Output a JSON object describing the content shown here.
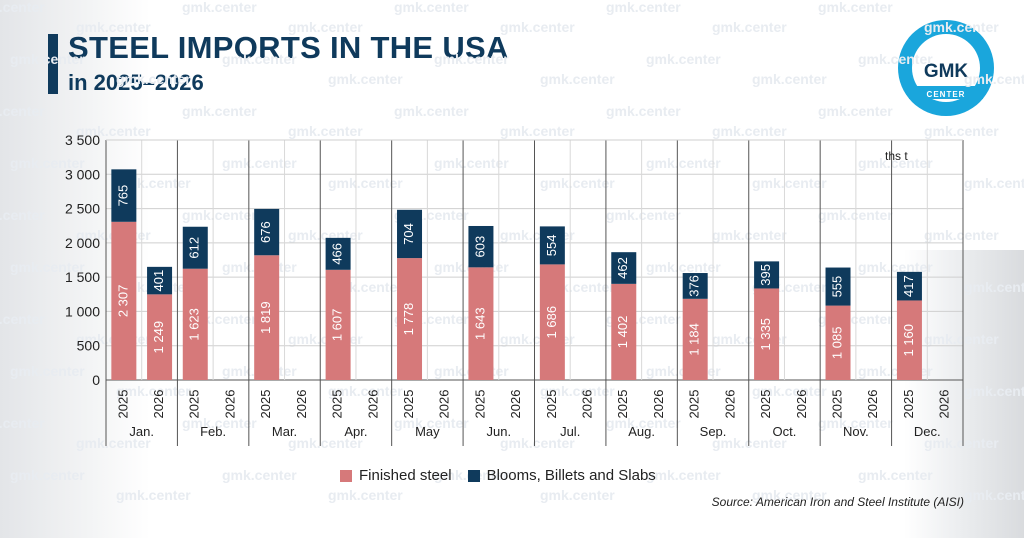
{
  "header": {
    "title": "STEEL IMPORTS IN THE USA",
    "subtitle": "in 2025–2026"
  },
  "logo": {
    "line1": "GMK",
    "line2": "CENTER"
  },
  "watermark": "gmk.center",
  "colors": {
    "finished": "#d6797a",
    "blooms": "#0f3a5c",
    "title": "#0f3a5c",
    "logo_ring": "#1aa6dc"
  },
  "chart_data": {
    "type": "bar",
    "stacked": true,
    "unit": "ths t",
    "months": [
      "Jan.",
      "Feb.",
      "Mar.",
      "Apr.",
      "May",
      "Jun.",
      "Jul.",
      "Aug.",
      "Sep.",
      "Oct.",
      "Nov.",
      "Dec."
    ],
    "years": [
      "2025",
      "2026"
    ],
    "categories": [
      {
        "month": "Jan.",
        "year": "2025"
      },
      {
        "month": "Jan.",
        "year": "2026"
      },
      {
        "month": "Feb.",
        "year": "2025"
      },
      {
        "month": "Feb.",
        "year": "2026"
      },
      {
        "month": "Mar.",
        "year": "2025"
      },
      {
        "month": "Mar.",
        "year": "2026"
      },
      {
        "month": "Apr.",
        "year": "2025"
      },
      {
        "month": "Apr.",
        "year": "2026"
      },
      {
        "month": "May",
        "year": "2025"
      },
      {
        "month": "May",
        "year": "2026"
      },
      {
        "month": "Jun.",
        "year": "2025"
      },
      {
        "month": "Jun.",
        "year": "2026"
      },
      {
        "month": "Jul.",
        "year": "2025"
      },
      {
        "month": "Jul.",
        "year": "2026"
      },
      {
        "month": "Aug.",
        "year": "2025"
      },
      {
        "month": "Aug.",
        "year": "2026"
      },
      {
        "month": "Sep.",
        "year": "2025"
      },
      {
        "month": "Sep.",
        "year": "2026"
      },
      {
        "month": "Oct.",
        "year": "2025"
      },
      {
        "month": "Oct.",
        "year": "2026"
      },
      {
        "month": "Nov.",
        "year": "2025"
      },
      {
        "month": "Nov.",
        "year": "2026"
      },
      {
        "month": "Dec.",
        "year": "2025"
      },
      {
        "month": "Dec.",
        "year": "2026"
      }
    ],
    "series": [
      {
        "name": "Finished steel",
        "color": "#d6797a",
        "values": [
          2307,
          1249,
          1623,
          null,
          1819,
          null,
          1607,
          null,
          1778,
          null,
          1643,
          null,
          1686,
          null,
          1402,
          null,
          1184,
          null,
          1335,
          null,
          1085,
          null,
          1160,
          null
        ],
        "labels": [
          "2 307",
          "1 249",
          "1 623",
          "",
          "1 819",
          "",
          "1 607",
          "",
          "1 778",
          "",
          "1 643",
          "",
          "1 686",
          "",
          "1 402",
          "",
          "1 184",
          "",
          "1 335",
          "",
          "1 085",
          "",
          "1 160",
          ""
        ]
      },
      {
        "name": "Blooms, Billets and Slabs",
        "color": "#0f3a5c",
        "values": [
          765,
          401,
          612,
          null,
          676,
          null,
          466,
          null,
          704,
          null,
          603,
          null,
          554,
          null,
          462,
          null,
          376,
          null,
          395,
          null,
          555,
          null,
          417,
          null
        ],
        "labels": [
          "765",
          "401",
          "612",
          "",
          "676",
          "",
          "466",
          "",
          "704",
          "",
          "603",
          "",
          "554",
          "",
          "462",
          "",
          "376",
          "",
          "395",
          "",
          "555",
          "",
          "417",
          ""
        ]
      }
    ],
    "ylim": [
      0,
      3500
    ],
    "yticks": [
      0,
      500,
      1000,
      1500,
      2000,
      2500,
      3000,
      3500
    ],
    "ytick_labels": [
      "0",
      "500",
      "1 000",
      "1 500",
      "2 000",
      "2 500",
      "3 000",
      "3 500"
    ],
    "grid": true,
    "legend_position": "bottom-center"
  },
  "source": "Source: American Iron and Steel Institute (AISI)"
}
